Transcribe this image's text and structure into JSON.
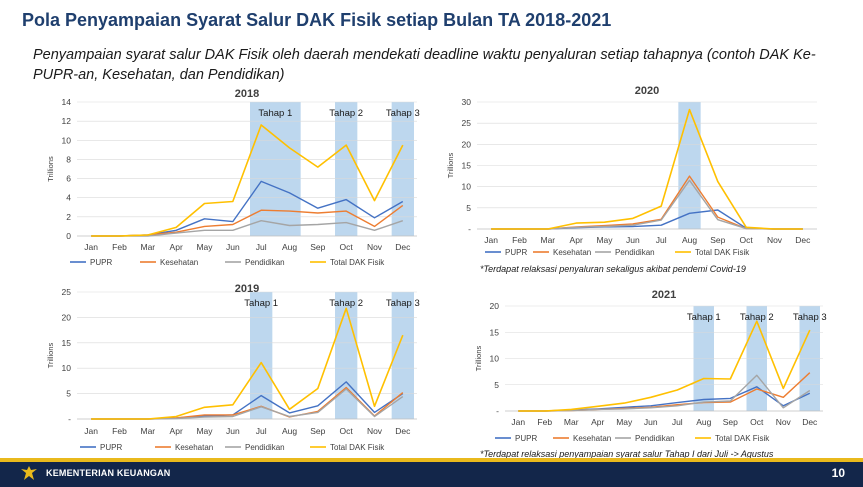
{
  "slide": {
    "title": "Pola Penyampaian Syarat Salur DAK Fisik setiap Bulan TA 2018-2021",
    "subtitle": "Penyampaian syarat salur DAK Fisik oleh daerah mendekati deadline waktu penyaluran setiap tahapnya (contoh DAK Ke-PUPR-an, Kesehatan, dan Pendidikan)",
    "footer_org": "KEMENTERIAN KEUANGAN",
    "page_number": "10",
    "note_2020": "*Terdapat relaksasi penyaluran sekaligus akibat pendemi Covid-19",
    "note_2021": "*Terdapat relaksasi penyampaian syarat salur Tahap I dari Juli -> Agustus"
  },
  "colors": {
    "PUPR": "#4472c4",
    "Kesehatan": "#ed7d31",
    "Pendidikan": "#a5a5a5",
    "Total DAK Fisik": "#ffc000",
    "highlight": "#bdd7ee",
    "grid": "#d9d9d9",
    "title": "#1f3f6e",
    "footer": "#13264a"
  },
  "chart_data": [
    {
      "type": "line",
      "title": "2018",
      "ylabel": "Trillions",
      "ylim": [
        0,
        14
      ],
      "yticks": [
        "0",
        "2",
        "4",
        "6",
        "8",
        "10",
        "12",
        "14"
      ],
      "categories": [
        "Jan",
        "Feb",
        "Mar",
        "Apr",
        "May",
        "Jun",
        "Jul",
        "Aug",
        "Sep",
        "Oct",
        "Nov",
        "Dec"
      ],
      "highlights": [
        {
          "label": "Tahap 1",
          "months": [
            "Jul",
            "Aug"
          ]
        },
        {
          "label": "Tahap 2",
          "months": [
            "Oct"
          ]
        },
        {
          "label": "Tahap 3",
          "months": [
            "Dec"
          ]
        }
      ],
      "series": [
        {
          "name": "PUPR",
          "values": [
            0,
            0,
            0.1,
            0.6,
            1.8,
            1.5,
            5.7,
            4.5,
            2.9,
            3.8,
            1.9,
            3.6
          ]
        },
        {
          "name": "Kesehatan",
          "values": [
            0,
            0,
            0.1,
            0.4,
            1.0,
            1.2,
            2.7,
            2.6,
            2.4,
            2.6,
            1.0,
            3.2
          ]
        },
        {
          "name": "Pendidikan",
          "values": [
            0,
            0,
            0,
            0.3,
            0.6,
            0.6,
            1.6,
            1.1,
            1.2,
            1.4,
            0.6,
            1.6
          ]
        },
        {
          "name": "Total DAK Fisik",
          "values": [
            0,
            0,
            0.1,
            0.9,
            3.4,
            3.6,
            11.6,
            9.2,
            7.2,
            9.5,
            3.7,
            9.5
          ]
        }
      ],
      "legend_position": "bottom"
    },
    {
      "type": "line",
      "title": "2020",
      "ylabel": "Trillions",
      "ylim": [
        0,
        30
      ],
      "yticks": [
        "-",
        "5",
        "10",
        "15",
        "20",
        "25",
        "30"
      ],
      "categories": [
        "Jan",
        "Feb",
        "Mar",
        "Apr",
        "May",
        "Jun",
        "Jul",
        "Aug",
        "Sep",
        "Oct",
        "Nov",
        "Dec"
      ],
      "highlights": [
        {
          "label": "",
          "months": [
            "Aug"
          ]
        }
      ],
      "series": [
        {
          "name": "PUPR",
          "values": [
            0,
            0,
            0,
            0.3,
            0.5,
            0.6,
            0.9,
            3.7,
            4.5,
            0.2,
            0,
            0
          ]
        },
        {
          "name": "Kesehatan",
          "values": [
            0,
            0,
            0,
            0.5,
            0.8,
            1.2,
            2.3,
            12.5,
            2.8,
            0.1,
            0,
            0
          ]
        },
        {
          "name": "Pendidikan",
          "values": [
            0,
            0,
            0,
            0.4,
            0.6,
            0.9,
            2.1,
            11.5,
            2.2,
            0.1,
            0,
            0
          ]
        },
        {
          "name": "Total DAK Fisik",
          "values": [
            0,
            0,
            0,
            1.4,
            1.6,
            2.5,
            5.4,
            28.2,
            11.2,
            0.4,
            0,
            0
          ]
        }
      ],
      "legend_position": "bottom"
    },
    {
      "type": "line",
      "title": "2019",
      "ylabel": "Trillions",
      "ylim": [
        0,
        25
      ],
      "yticks": [
        "-",
        "5",
        "10",
        "15",
        "20",
        "25"
      ],
      "categories": [
        "Jan",
        "Feb",
        "Mar",
        "Apr",
        "May",
        "Jun",
        "Jul",
        "Aug",
        "Sep",
        "Oct",
        "Nov",
        "Dec"
      ],
      "highlights": [
        {
          "label": "Tahap 1",
          "months": [
            "Jul"
          ]
        },
        {
          "label": "Tahap 2",
          "months": [
            "Oct"
          ]
        },
        {
          "label": "Tahap 3",
          "months": [
            "Dec"
          ]
        }
      ],
      "series": [
        {
          "name": "PUPR",
          "values": [
            0,
            0,
            0,
            0.2,
            0.6,
            0.8,
            4.6,
            1.2,
            2.6,
            7.3,
            1.3,
            5.0
          ]
        },
        {
          "name": "Kesehatan",
          "values": [
            0,
            0,
            0,
            0.2,
            0.8,
            0.8,
            2.5,
            0.4,
            1.5,
            6.2,
            0.6,
            5.2
          ]
        },
        {
          "name": "Pendidikan",
          "values": [
            0,
            0,
            0,
            0.1,
            0.4,
            0.5,
            2.4,
            0.5,
            1.3,
            5.9,
            0.5,
            4.4
          ]
        },
        {
          "name": "Total DAK Fisik",
          "values": [
            0,
            0,
            0,
            0.5,
            2.3,
            2.8,
            11.1,
            1.9,
            6.0,
            21.8,
            2.5,
            16.5
          ]
        }
      ],
      "legend_position": "bottom"
    },
    {
      "type": "line",
      "title": "2021",
      "ylabel": "Trillions",
      "ylim": [
        0,
        20
      ],
      "yticks": [
        "-",
        "5",
        "10",
        "15",
        "20"
      ],
      "categories": [
        "Jan",
        "Feb",
        "Mar",
        "Apr",
        "May",
        "Jun",
        "Jul",
        "Aug",
        "Sep",
        "Oct",
        "Nov",
        "Dec"
      ],
      "highlights": [
        {
          "label": "Tahap 1",
          "months": [
            "Aug"
          ]
        },
        {
          "label": "Tahap 2",
          "months": [
            "Oct"
          ]
        },
        {
          "label": "Tahap 3",
          "months": [
            "Dec"
          ]
        }
      ],
      "series": [
        {
          "name": "PUPR",
          "values": [
            0,
            0,
            0.2,
            0.4,
            0.7,
            1.0,
            1.6,
            2.2,
            2.4,
            4.6,
            1.0,
            3.4
          ]
        },
        {
          "name": "Kesehatan",
          "values": [
            0,
            0,
            0.1,
            0.3,
            0.5,
            0.7,
            1.2,
            1.6,
            1.7,
            4.2,
            2.6,
            7.3
          ]
        },
        {
          "name": "Pendidikan",
          "values": [
            0,
            0,
            0.1,
            0.3,
            0.4,
            0.6,
            1.0,
            1.7,
            1.9,
            6.8,
            0.6,
            3.9
          ]
        },
        {
          "name": "Total DAK Fisik",
          "values": [
            0,
            0,
            0.3,
            0.9,
            1.5,
            2.6,
            4.0,
            6.2,
            6.1,
            17.1,
            4.3,
            15.4
          ]
        }
      ],
      "legend_position": "bottom"
    }
  ]
}
